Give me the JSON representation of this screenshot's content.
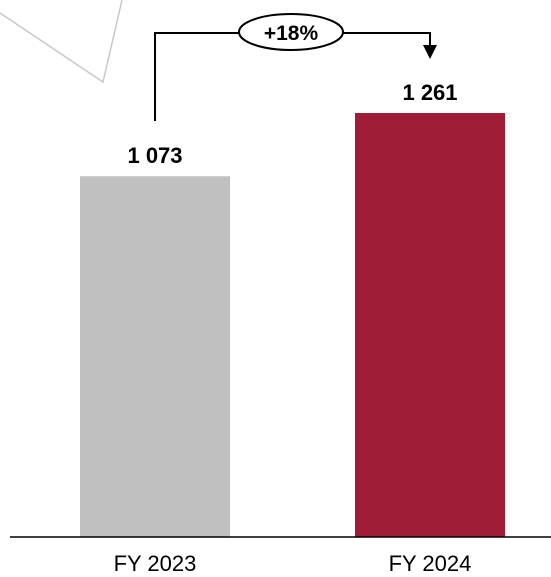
{
  "chart_data": {
    "type": "bar",
    "categories": [
      "FY 2023",
      "FY 2024"
    ],
    "values": [
      1073,
      1261
    ],
    "value_labels": [
      "1 073",
      "1 261"
    ],
    "colors": [
      "#c0c0c0",
      "#9e1c36"
    ],
    "growth_annotation": "+18%",
    "title": "",
    "xlabel": "",
    "ylabel": "",
    "grid": false,
    "legend": "none"
  }
}
